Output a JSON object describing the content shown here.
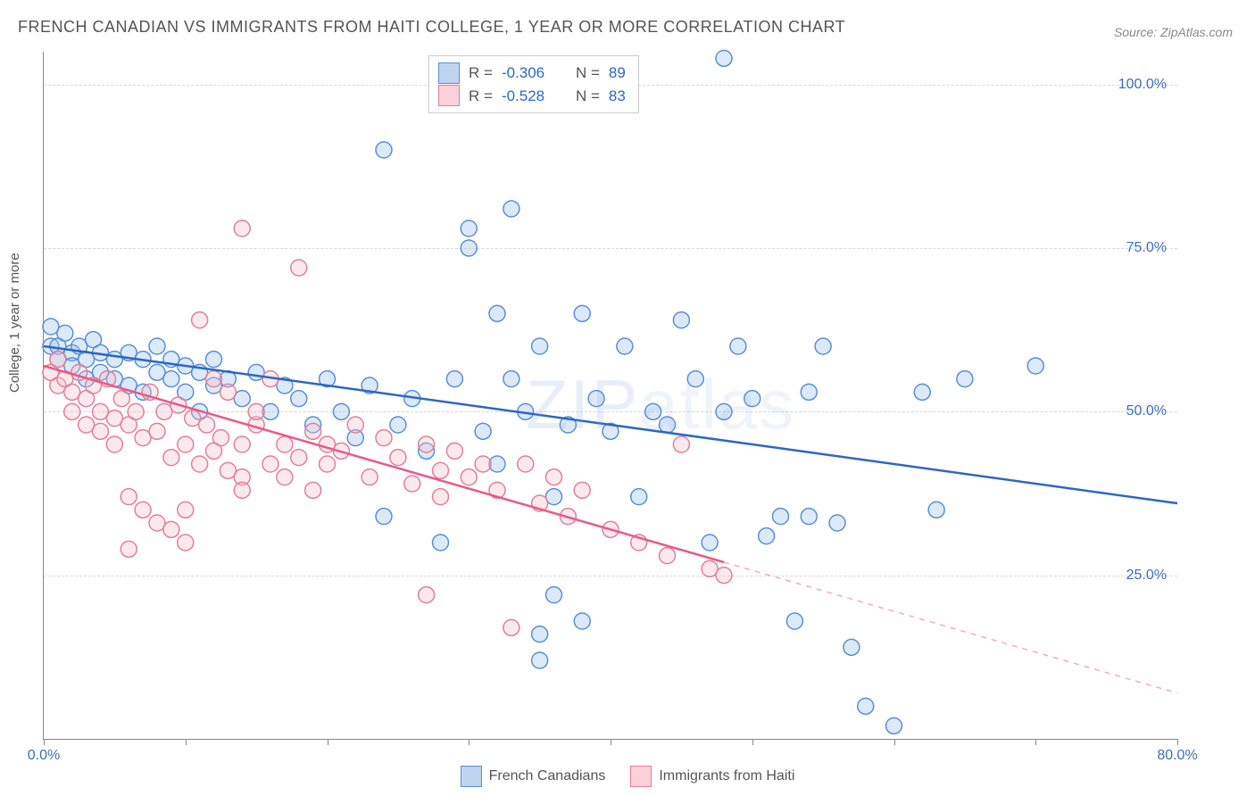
{
  "title": "FRENCH CANADIAN VS IMMIGRANTS FROM HAITI COLLEGE, 1 YEAR OR MORE CORRELATION CHART",
  "source": "Source: ZipAtlas.com",
  "y_axis_label": "College, 1 year or more",
  "watermark": "ZIPatlas",
  "chart": {
    "type": "scatter",
    "xlim": [
      0,
      80
    ],
    "ylim": [
      0,
      105
    ],
    "x_ticks": [
      0,
      10,
      20,
      30,
      40,
      50,
      60,
      70,
      80
    ],
    "x_tick_labels": {
      "0": "0.0%",
      "80": "80.0%"
    },
    "y_gridlines": [
      25,
      50,
      75,
      100
    ],
    "y_tick_labels": {
      "25": "25.0%",
      "50": "50.0%",
      "75": "75.0%",
      "100": "100.0%"
    },
    "background_color": "#ffffff",
    "grid_color": "#d8d8d8",
    "marker_radius": 9,
    "marker_fill_opacity": 0.35,
    "marker_stroke_width": 1.5,
    "series": [
      {
        "name": "French Canadians",
        "legend_label": "French Canadians",
        "color_fill": "#9bc0ea",
        "color_stroke": "#5b8fd6",
        "R": "-0.306",
        "N": "89",
        "trend": {
          "x1": 0,
          "y1": 60,
          "x2": 80,
          "y2": 36,
          "stroke": "#2b68c4",
          "width": 2.5,
          "solid_until_x": 80
        },
        "points": [
          [
            0.5,
            63
          ],
          [
            0.5,
            60
          ],
          [
            1,
            60
          ],
          [
            1,
            58
          ],
          [
            1.5,
            62
          ],
          [
            2,
            59
          ],
          [
            2,
            57
          ],
          [
            2.5,
            60
          ],
          [
            3,
            58
          ],
          [
            3,
            55
          ],
          [
            3.5,
            61
          ],
          [
            4,
            59
          ],
          [
            4,
            56
          ],
          [
            5,
            58
          ],
          [
            5,
            55
          ],
          [
            6,
            59
          ],
          [
            6,
            54
          ],
          [
            7,
            58
          ],
          [
            7,
            53
          ],
          [
            8,
            56
          ],
          [
            8,
            60
          ],
          [
            9,
            55
          ],
          [
            9,
            58
          ],
          [
            10,
            57
          ],
          [
            10,
            53
          ],
          [
            11,
            56
          ],
          [
            11,
            50
          ],
          [
            12,
            54
          ],
          [
            12,
            58
          ],
          [
            13,
            55
          ],
          [
            14,
            52
          ],
          [
            15,
            56
          ],
          [
            16,
            50
          ],
          [
            17,
            54
          ],
          [
            18,
            52
          ],
          [
            19,
            48
          ],
          [
            20,
            55
          ],
          [
            21,
            50
          ],
          [
            22,
            46
          ],
          [
            23,
            54
          ],
          [
            24,
            90
          ],
          [
            24,
            34
          ],
          [
            25,
            48
          ],
          [
            26,
            52
          ],
          [
            27,
            44
          ],
          [
            28,
            30
          ],
          [
            29,
            55
          ],
          [
            30,
            75
          ],
          [
            30,
            78
          ],
          [
            31,
            47
          ],
          [
            32,
            42
          ],
          [
            32,
            65
          ],
          [
            33,
            55
          ],
          [
            33,
            81
          ],
          [
            34,
            50
          ],
          [
            35,
            60
          ],
          [
            35,
            16
          ],
          [
            35,
            12
          ],
          [
            36,
            37
          ],
          [
            36,
            22
          ],
          [
            37,
            48
          ],
          [
            38,
            65
          ],
          [
            38,
            18
          ],
          [
            39,
            52
          ],
          [
            40,
            47
          ],
          [
            41,
            60
          ],
          [
            42,
            37
          ],
          [
            43,
            50
          ],
          [
            44,
            48
          ],
          [
            45,
            64
          ],
          [
            46,
            55
          ],
          [
            47,
            30
          ],
          [
            48,
            104
          ],
          [
            49,
            60
          ],
          [
            50,
            52
          ],
          [
            51,
            31
          ],
          [
            52,
            34
          ],
          [
            53,
            18
          ],
          [
            54,
            53
          ],
          [
            55,
            60
          ],
          [
            56,
            33
          ],
          [
            57,
            14
          ],
          [
            58,
            5
          ],
          [
            60,
            2
          ],
          [
            62,
            53
          ],
          [
            63,
            35
          ],
          [
            65,
            55
          ],
          [
            70,
            57
          ],
          [
            54,
            34
          ],
          [
            48,
            50
          ]
        ]
      },
      {
        "name": "Immigrants from Haiti",
        "legend_label": "Immigrants from Haiti",
        "color_fill": "#f4c0cb",
        "color_stroke": "#e37f9a",
        "R": "-0.528",
        "N": "83",
        "trend": {
          "x1": 0,
          "y1": 57,
          "x2": 80,
          "y2": 7,
          "stroke": "#e85a8a",
          "width": 2.5,
          "solid_until_x": 48
        },
        "points": [
          [
            0.5,
            56
          ],
          [
            1,
            58
          ],
          [
            1,
            54
          ],
          [
            1.5,
            55
          ],
          [
            2,
            53
          ],
          [
            2,
            50
          ],
          [
            2.5,
            56
          ],
          [
            3,
            52
          ],
          [
            3,
            48
          ],
          [
            3.5,
            54
          ],
          [
            4,
            50
          ],
          [
            4,
            47
          ],
          [
            4.5,
            55
          ],
          [
            5,
            49
          ],
          [
            5,
            45
          ],
          [
            5.5,
            52
          ],
          [
            6,
            48
          ],
          [
            6,
            37
          ],
          [
            6.5,
            50
          ],
          [
            7,
            46
          ],
          [
            7,
            35
          ],
          [
            7.5,
            53
          ],
          [
            8,
            47
          ],
          [
            8,
            33
          ],
          [
            8.5,
            50
          ],
          [
            9,
            43
          ],
          [
            9,
            32
          ],
          [
            9.5,
            51
          ],
          [
            10,
            45
          ],
          [
            10,
            30
          ],
          [
            10.5,
            49
          ],
          [
            11,
            42
          ],
          [
            11,
            64
          ],
          [
            11.5,
            48
          ],
          [
            12,
            44
          ],
          [
            12,
            55
          ],
          [
            12.5,
            46
          ],
          [
            13,
            41
          ],
          [
            13,
            53
          ],
          [
            14,
            78
          ],
          [
            14,
            45
          ],
          [
            14,
            40
          ],
          [
            15,
            48
          ],
          [
            15,
            50
          ],
          [
            16,
            42
          ],
          [
            16,
            55
          ],
          [
            17,
            45
          ],
          [
            17,
            40
          ],
          [
            18,
            43
          ],
          [
            18,
            72
          ],
          [
            19,
            47
          ],
          [
            19,
            38
          ],
          [
            20,
            45
          ],
          [
            20,
            42
          ],
          [
            21,
            44
          ],
          [
            22,
            48
          ],
          [
            23,
            40
          ],
          [
            24,
            46
          ],
          [
            25,
            43
          ],
          [
            26,
            39
          ],
          [
            27,
            45
          ],
          [
            27,
            22
          ],
          [
            28,
            41
          ],
          [
            28,
            37
          ],
          [
            29,
            44
          ],
          [
            30,
            40
          ],
          [
            31,
            42
          ],
          [
            32,
            38
          ],
          [
            33,
            17
          ],
          [
            34,
            42
          ],
          [
            35,
            36
          ],
          [
            36,
            40
          ],
          [
            37,
            34
          ],
          [
            38,
            38
          ],
          [
            40,
            32
          ],
          [
            42,
            30
          ],
          [
            44,
            28
          ],
          [
            45,
            45
          ],
          [
            47,
            26
          ],
          [
            48,
            25
          ],
          [
            6,
            29
          ],
          [
            10,
            35
          ],
          [
            14,
            38
          ]
        ]
      }
    ]
  },
  "bottom_legend": [
    {
      "swatch": "blue",
      "label": "French Canadians"
    },
    {
      "swatch": "pink",
      "label": "Immigrants from Haiti"
    }
  ]
}
